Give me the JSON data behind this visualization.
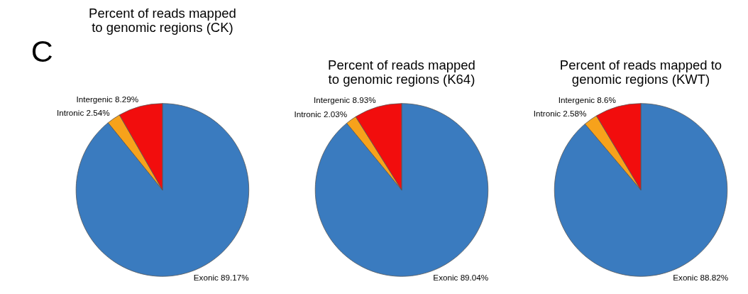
{
  "chart_data": [
    {
      "type": "pie",
      "title": "Percent of reads mapped\nto genomic regions (CK)",
      "categories": [
        "Exonic",
        "Intronic",
        "Intergenic"
      ],
      "values": [
        89.17,
        2.54,
        8.29
      ],
      "colors": [
        "#3a7bbf",
        "#f7a21b",
        "#f20d0d"
      ],
      "value_labels": [
        "89.17%",
        "2.54%",
        "8.29%"
      ],
      "annotations": [
        "C"
      ]
    },
    {
      "type": "pie",
      "title": "Percent of reads mapped\nto genomic regions (K64)",
      "categories": [
        "Exonic",
        "Intronic",
        "Intergenic"
      ],
      "values": [
        89.04,
        2.03,
        8.93
      ],
      "colors": [
        "#3a7bbf",
        "#f7a21b",
        "#f20d0d"
      ],
      "value_labels": [
        "89.04%",
        "2.03%",
        "8.93%"
      ]
    },
    {
      "type": "pie",
      "title": "Percent of reads mapped to\ngenomic regions (KWT)",
      "categories": [
        "Exonic",
        "Intronic",
        "Intergenic"
      ],
      "values": [
        88.82,
        2.58,
        8.6
      ],
      "colors": [
        "#3a7bbf",
        "#f7a21b",
        "#f20d0d"
      ],
      "value_labels": [
        "88.82%",
        "2.58%",
        "8.6%"
      ]
    }
  ]
}
